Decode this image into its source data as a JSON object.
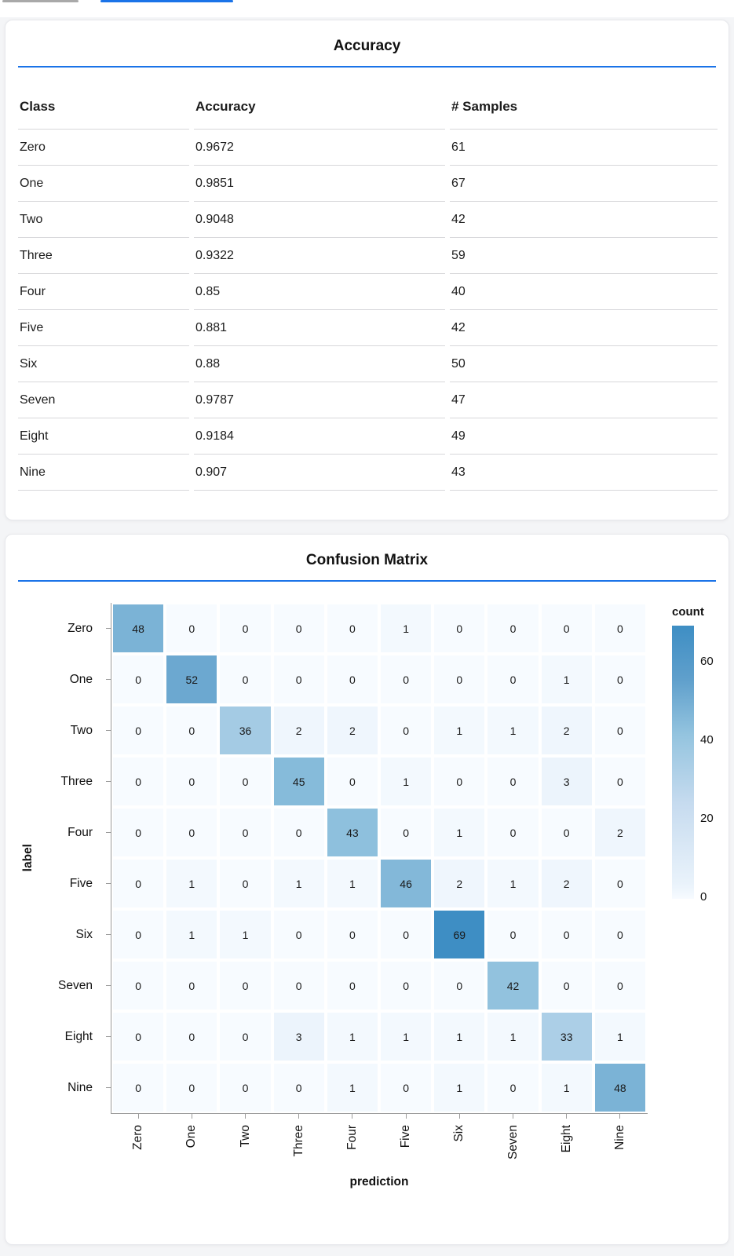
{
  "page": {
    "background_color": "#f4f5f7",
    "accent_blue": "#1a73e8",
    "tab_indicators": [
      {
        "name": "inactive-tab-indicator",
        "color": "#a9a9a9"
      },
      {
        "name": "active-tab-indicator",
        "color": "#1a73e8"
      }
    ]
  },
  "accuracy_card": {
    "title": "Accuracy",
    "columns": [
      "Class",
      "Accuracy",
      "# Samples"
    ],
    "rows": [
      [
        "Zero",
        "0.9672",
        "61"
      ],
      [
        "One",
        "0.9851",
        "67"
      ],
      [
        "Two",
        "0.9048",
        "42"
      ],
      [
        "Three",
        "0.9322",
        "59"
      ],
      [
        "Four",
        "0.85",
        "40"
      ],
      [
        "Five",
        "0.881",
        "42"
      ],
      [
        "Six",
        "0.88",
        "50"
      ],
      [
        "Seven",
        "0.9787",
        "47"
      ],
      [
        "Eight",
        "0.9184",
        "49"
      ],
      [
        "Nine",
        "0.907",
        "43"
      ]
    ]
  },
  "confusion_card": {
    "title": "Confusion Matrix",
    "chart_data": {
      "type": "heatmap",
      "title": "Confusion Matrix",
      "xlabel": "prediction",
      "ylabel": "label",
      "x_categories": [
        "Zero",
        "One",
        "Two",
        "Three",
        "Four",
        "Five",
        "Six",
        "Seven",
        "Eight",
        "Nine"
      ],
      "y_categories": [
        "Zero",
        "One",
        "Two",
        "Three",
        "Four",
        "Five",
        "Six",
        "Seven",
        "Eight",
        "Nine"
      ],
      "matrix": [
        [
          48,
          0,
          0,
          0,
          0,
          1,
          0,
          0,
          0,
          0
        ],
        [
          0,
          52,
          0,
          0,
          0,
          0,
          0,
          0,
          1,
          0
        ],
        [
          0,
          0,
          36,
          2,
          2,
          0,
          1,
          1,
          2,
          0
        ],
        [
          0,
          0,
          0,
          45,
          0,
          1,
          0,
          0,
          3,
          0
        ],
        [
          0,
          0,
          0,
          0,
          43,
          0,
          1,
          0,
          0,
          2
        ],
        [
          0,
          1,
          0,
          1,
          1,
          46,
          2,
          1,
          2,
          0
        ],
        [
          0,
          1,
          1,
          0,
          0,
          0,
          69,
          0,
          0,
          0
        ],
        [
          0,
          0,
          0,
          0,
          0,
          0,
          0,
          42,
          0,
          0
        ],
        [
          0,
          0,
          0,
          3,
          1,
          1,
          1,
          1,
          33,
          1
        ],
        [
          0,
          0,
          0,
          0,
          1,
          0,
          1,
          0,
          1,
          48
        ]
      ],
      "legend": {
        "title": "count",
        "ticks": [
          0,
          20,
          40,
          60
        ],
        "domain": [
          0,
          69
        ],
        "color_low": "#f7fbff",
        "color_high": "#3e8ec4",
        "ramp": [
          [
            0,
            "#f7fbff"
          ],
          [
            0.05,
            "#eaf3fb"
          ],
          [
            0.35,
            "#c6dbef"
          ],
          [
            0.6,
            "#94c4df"
          ],
          [
            0.8,
            "#60a0cc"
          ],
          [
            1,
            "#3e8ec4"
          ]
        ],
        "position": "right"
      },
      "grid": false
    }
  }
}
